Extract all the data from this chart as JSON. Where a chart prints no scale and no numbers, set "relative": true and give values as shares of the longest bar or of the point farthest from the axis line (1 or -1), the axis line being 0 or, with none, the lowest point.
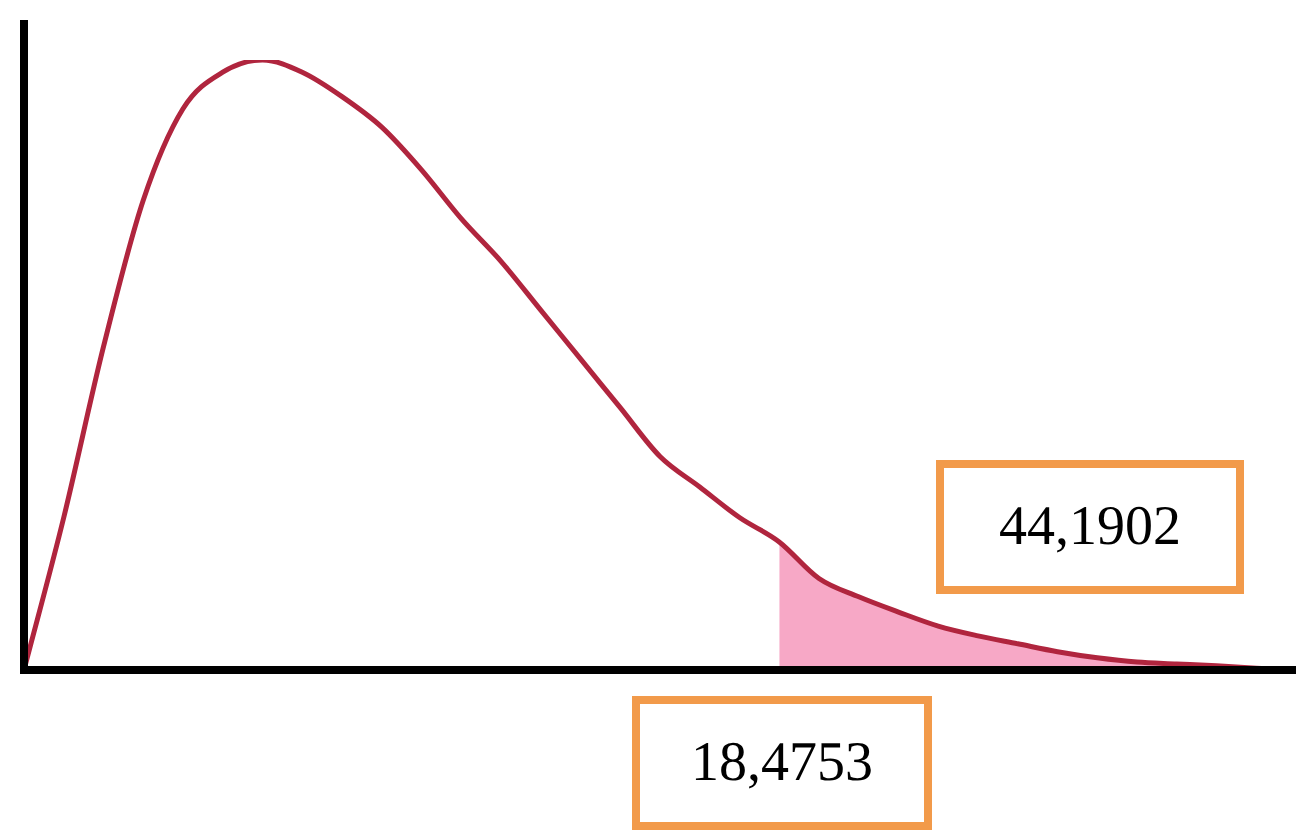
{
  "chart_data": {
    "type": "line",
    "relative": true,
    "categories": [
      null,
      null,
      null,
      null,
      null,
      null,
      null,
      null,
      null,
      null,
      null,
      null,
      null,
      null,
      null,
      null,
      null,
      null,
      null,
      null,
      null,
      null,
      null,
      null,
      null,
      null,
      null,
      null,
      null,
      null,
      null,
      null,
      null
    ],
    "series": [
      {
        "type": "area",
        "color": "#f7a8c6",
        "values": [
          null,
          null,
          null,
          null,
          null,
          null,
          null,
          null,
          null,
          null,
          null,
          null,
          null,
          null,
          null,
          null,
          null,
          null,
          null,
          0.21,
          0.15,
          0.12,
          0.095,
          0.072,
          0.056,
          0.043,
          0.03,
          0.02,
          0.013,
          0.01,
          0.007,
          0.003,
          0
        ]
      },
      {
        "color": "#b0253e",
        "values": [
          0,
          0.25,
          0.53,
          0.77,
          0.92,
          0.98,
          1,
          0.98,
          0.94,
          0.89,
          0.82,
          0.74,
          0.67,
          0.59,
          0.51,
          0.43,
          0.35,
          0.3,
          0.25,
          0.21,
          0.15,
          0.12,
          0.095,
          0.072,
          0.056,
          0.043,
          0.03,
          0.02,
          0.013,
          0.01,
          0.007,
          0.003,
          0
        ]
      }
    ],
    "annotations": [
      "44,1902",
      "18,4753"
    ]
  }
}
